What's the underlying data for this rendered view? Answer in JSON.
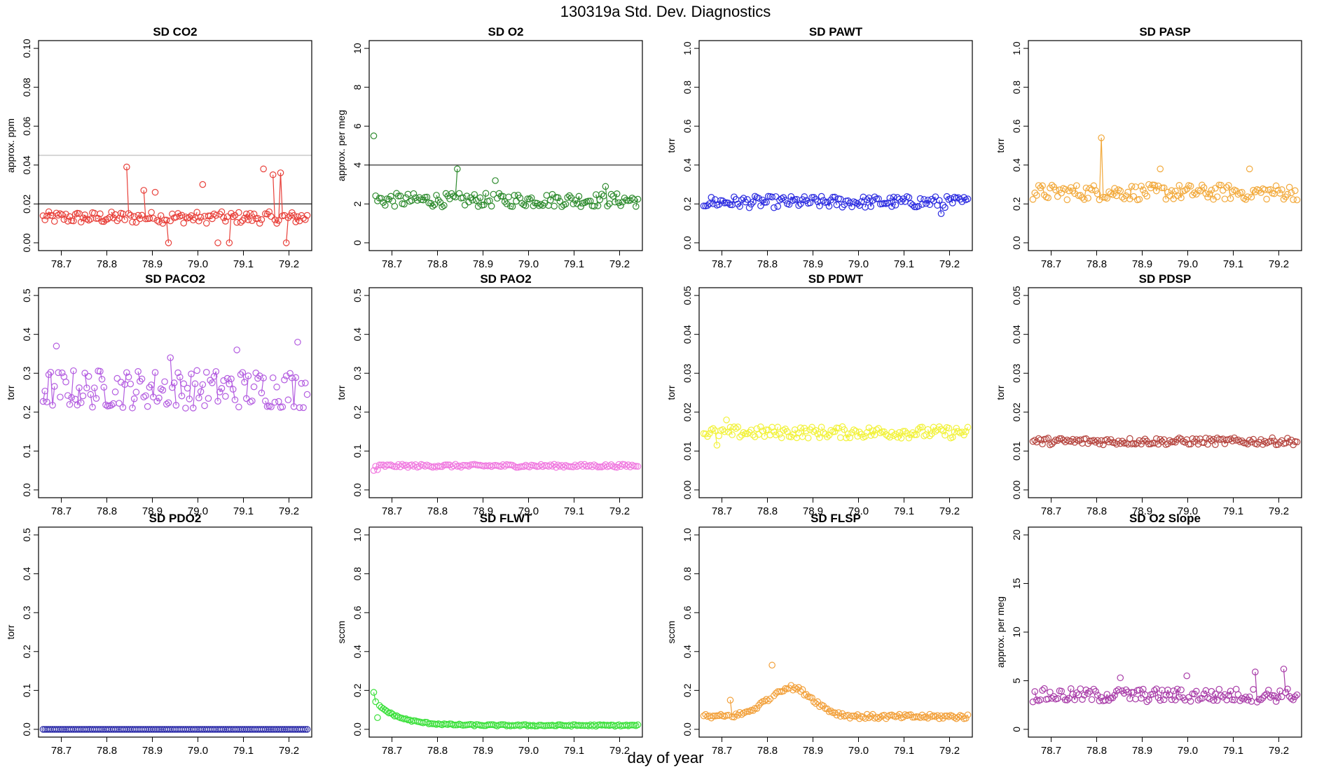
{
  "figure": {
    "title": "130319a   Std. Dev. Diagnostics",
    "xlabel": "day of year"
  },
  "chart_data": [
    {
      "id": "co2",
      "type": "scatter",
      "title": "SD CO2",
      "ylabel": "approx. ppm",
      "ylim": [
        0,
        0.1
      ],
      "yticks": [
        "0.00",
        "0.02",
        "0.04",
        "0.06",
        "0.08",
        "0.10"
      ],
      "color": "#e8403a",
      "refs": [
        {
          "value": 0.02,
          "color": "#333333"
        },
        {
          "value": 0.045,
          "color": "#bfbfbf"
        }
      ],
      "base": 0.013,
      "noise": 0.003,
      "spikes": [
        [
          0.845,
          0.039
        ],
        [
          0.88,
          0.027
        ],
        [
          0.905,
          0.026
        ],
        [
          0.935,
          0.0
        ],
        [
          1.01,
          0.03
        ],
        [
          1.045,
          0.0
        ],
        [
          1.07,
          0.0
        ],
        [
          1.145,
          0.038
        ],
        [
          1.165,
          0.035
        ],
        [
          1.18,
          0.036
        ],
        [
          1.195,
          0.0
        ]
      ]
    },
    {
      "id": "o2",
      "type": "scatter",
      "title": "SD O2",
      "ylabel": "approx. per meg",
      "ylim": [
        0,
        10
      ],
      "yticks": [
        "0",
        "2",
        "4",
        "6",
        "8",
        "10"
      ],
      "color": "#2e8b2e",
      "refs": [
        {
          "value": 4,
          "color": "#333333"
        }
      ],
      "base": 2.2,
      "noise": 0.35,
      "spikes": [
        [
          0.66,
          5.5
        ],
        [
          0.845,
          3.8
        ],
        [
          0.925,
          3.2
        ],
        [
          1.17,
          2.9
        ]
      ]
    },
    {
      "id": "pawt",
      "type": "scatter",
      "title": "SD PAWT",
      "ylabel": "torr",
      "ylim": [
        0,
        1
      ],
      "yticks": [
        "0.0",
        "0.2",
        "0.4",
        "0.6",
        "0.8",
        "1.0"
      ],
      "color": "#2a2ae0",
      "refs": [],
      "base": 0.21,
      "noise": 0.03,
      "spikes": [
        [
          1.18,
          0.15
        ]
      ]
    },
    {
      "id": "pasp",
      "type": "scatter",
      "title": "SD PASP",
      "ylabel": "torr",
      "ylim": [
        0,
        1
      ],
      "yticks": [
        "0.0",
        "0.2",
        "0.4",
        "0.6",
        "0.8",
        "1.0"
      ],
      "color": "#f2a93b",
      "refs": [],
      "base": 0.26,
      "noise": 0.04,
      "spikes": [
        [
          0.81,
          0.54
        ],
        [
          0.94,
          0.38
        ],
        [
          1.135,
          0.38
        ]
      ]
    },
    {
      "id": "paco2",
      "type": "scatter",
      "title": "SD PACO2",
      "ylabel": "torr",
      "ylim": [
        0,
        0.5
      ],
      "yticks": [
        "0.0",
        "0.1",
        "0.2",
        "0.3",
        "0.4",
        "0.5"
      ],
      "color": "#b35ce0",
      "refs": [],
      "base": 0.26,
      "noise": 0.05,
      "spikes": [
        [
          0.69,
          0.37
        ],
        [
          0.94,
          0.34
        ],
        [
          1.085,
          0.36
        ],
        [
          1.22,
          0.38
        ]
      ]
    },
    {
      "id": "pao2",
      "type": "scatter",
      "title": "SD PAO2",
      "ylabel": "torr",
      "ylim": [
        0,
        0.5
      ],
      "yticks": [
        "0.0",
        "0.1",
        "0.2",
        "0.3",
        "0.4",
        "0.5"
      ],
      "color": "#f07ae0",
      "refs": [],
      "base": 0.062,
      "noise": 0.004,
      "spikes": [
        [
          0.66,
          0.05
        ],
        [
          0.67,
          0.052
        ]
      ]
    },
    {
      "id": "pdwt",
      "type": "scatter",
      "title": "SD PDWT",
      "ylabel": "torr",
      "ylim": [
        0,
        0.05
      ],
      "yticks": [
        "0.00",
        "0.01",
        "0.02",
        "0.03",
        "0.04",
        "0.05"
      ],
      "color": "#f2f23a",
      "refs": [],
      "base": 0.0148,
      "noise": 0.0015,
      "spikes": [
        [
          0.69,
          0.0115
        ],
        [
          0.71,
          0.018
        ]
      ]
    },
    {
      "id": "pdsp",
      "type": "scatter",
      "title": "SD PDSP",
      "ylabel": "torr",
      "ylim": [
        0,
        0.05
      ],
      "yticks": [
        "0.00",
        "0.01",
        "0.02",
        "0.03",
        "0.04",
        "0.05"
      ],
      "color": "#b5453f",
      "refs": [],
      "base": 0.0125,
      "noise": 0.0009,
      "spikes": []
    },
    {
      "id": "pdo2",
      "type": "scatter",
      "title": "SD PDO2",
      "ylabel": "torr",
      "ylim": [
        0,
        0.5
      ],
      "yticks": [
        "0.0",
        "0.1",
        "0.2",
        "0.3",
        "0.4",
        "0.5"
      ],
      "color": "#2a2aa8",
      "refs": [],
      "base": 0.0,
      "noise": 0.0,
      "spikes": []
    },
    {
      "id": "flwt",
      "type": "scatter",
      "title": "SD FLWT",
      "ylabel": "sccm",
      "ylim": [
        0,
        1
      ],
      "yticks": [
        "0.0",
        "0.2",
        "0.4",
        "0.6",
        "0.8",
        "1.0"
      ],
      "color": "#3ae03a",
      "refs": [],
      "base": 0.02,
      "noise": 0.004,
      "decay": {
        "amp": 0.13,
        "rate": 0.05
      },
      "spikes": [
        [
          0.66,
          0.19
        ],
        [
          0.67,
          0.06
        ]
      ]
    },
    {
      "id": "flsp",
      "type": "scatter",
      "title": "SD FLSP",
      "ylabel": "sccm",
      "ylim": [
        0,
        1
      ],
      "yticks": [
        "0.0",
        "0.2",
        "0.4",
        "0.6",
        "0.8",
        "1.0"
      ],
      "color": "#f2a03a",
      "refs": [],
      "base": 0.065,
      "noise": 0.012,
      "bump": {
        "center": 0.85,
        "width": 0.07,
        "amp": 0.15
      },
      "spikes": [
        [
          0.81,
          0.33
        ],
        [
          0.72,
          0.15
        ]
      ]
    },
    {
      "id": "o2slope",
      "type": "scatter",
      "title": "SD O2 Slope",
      "ylabel": "approx. per meg",
      "ylim": [
        0,
        20
      ],
      "yticks": [
        "0",
        "5",
        "10",
        "15",
        "20"
      ],
      "color": "#a83ca8",
      "refs": [],
      "base": 3.5,
      "noise": 0.7,
      "spikes": [
        [
          0.85,
          5.3
        ],
        [
          1.15,
          5.9
        ],
        [
          1.21,
          6.2
        ],
        [
          1.0,
          5.5
        ]
      ]
    }
  ],
  "xaxis": {
    "xlim": [
      78.65,
      79.25
    ],
    "ticks": [
      78.7,
      78.8,
      78.9,
      79.0,
      79.1,
      79.2
    ],
    "tick_labels": [
      "78.7",
      "78.8",
      "78.9",
      "79.0",
      "79.1",
      "79.2"
    ]
  }
}
